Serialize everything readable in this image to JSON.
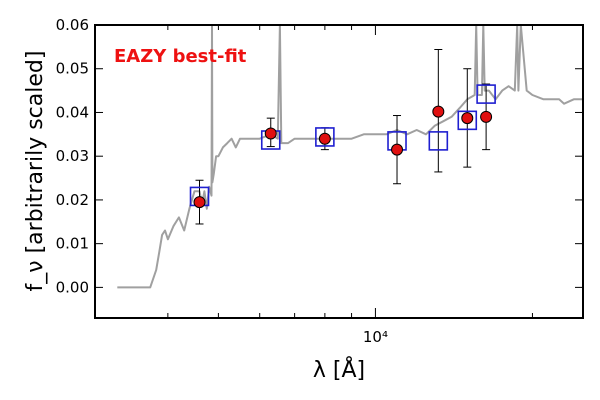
{
  "chart_data": {
    "type": "line",
    "annotation": "EAZY best-fit",
    "xlabel": "λ [Å]",
    "ylabel": "f_ν [arbitrarily scaled]",
    "x_scale": "log",
    "xlim": [
      2900,
      25000
    ],
    "ylim": [
      -0.007,
      0.06
    ],
    "y_ticks": [
      0.0,
      0.01,
      0.02,
      0.03,
      0.04,
      0.05,
      0.06
    ],
    "y_tick_labels": [
      "0.00",
      "0.01",
      "0.02",
      "0.03",
      "0.04",
      "0.05",
      "0.06"
    ],
    "x_major_tick_label": "10⁴",
    "x_major_tick": 10000,
    "x_minor_ticks": [
      4000,
      5000,
      6000,
      7000,
      8000,
      9000,
      20000
    ],
    "grid": false,
    "colors": {
      "model": "#a0a0a0",
      "model_photometry": "#1f1fd0",
      "observed": "#e01010",
      "annotation": "#ee1111"
    },
    "series": [
      {
        "role": "model_spectrum",
        "line_style": "solid",
        "x": [
          3200,
          3300,
          3400,
          3500,
          3600,
          3700,
          3800,
          3850,
          3900,
          3950,
          4000,
          4100,
          4200,
          4300,
          4400,
          4500,
          4600,
          4650,
          4700,
          4750,
          4800,
          4850,
          4860,
          4870,
          4900,
          4950,
          5000,
          5100,
          5200,
          5300,
          5400,
          5500,
          5700,
          6000,
          6300,
          6500,
          6560,
          6600,
          6800,
          7000,
          7500,
          8000,
          8500,
          9000,
          9500,
          10000,
          10500,
          11000,
          11500,
          12000,
          12500,
          13000,
          13500,
          14000,
          14500,
          15000,
          15500,
          15600,
          15700,
          16000,
          16100,
          16200,
          16500,
          17000,
          17500,
          18000,
          18500,
          18700,
          18800,
          19000,
          19500,
          20000,
          21000,
          22000,
          22300,
          22400,
          22500,
          23000,
          24000,
          25000
        ],
        "y": [
          0.0,
          0.0,
          0.0,
          0.0,
          0.0,
          0.0,
          0.004,
          0.008,
          0.012,
          0.013,
          0.011,
          0.014,
          0.016,
          0.013,
          0.018,
          0.022,
          0.022,
          0.019,
          0.022,
          0.018,
          0.023,
          0.021,
          0.06,
          0.024,
          0.026,
          0.03,
          0.03,
          0.032,
          0.033,
          0.034,
          0.032,
          0.034,
          0.034,
          0.034,
          0.035,
          0.034,
          0.06,
          0.033,
          0.033,
          0.034,
          0.034,
          0.034,
          0.034,
          0.034,
          0.035,
          0.035,
          0.035,
          0.036,
          0.035,
          0.036,
          0.035,
          0.037,
          0.038,
          0.039,
          0.041,
          0.043,
          0.044,
          0.06,
          0.044,
          0.044,
          0.06,
          0.045,
          0.045,
          0.043,
          0.045,
          0.046,
          0.045,
          0.06,
          0.045,
          0.06,
          0.045,
          0.044,
          0.043,
          0.043,
          0.043,
          0.043,
          0.043,
          0.042,
          0.043,
          0.043
        ]
      },
      {
        "role": "model_photometry",
        "marker": "open-square",
        "x": [
          4600,
          6300,
          8000,
          11000,
          13200,
          15000,
          16300
        ],
        "y": [
          0.0208,
          0.0337,
          0.0344,
          0.0335,
          0.0335,
          0.0382,
          0.0442
        ]
      },
      {
        "role": "observed_photometry",
        "marker": "filled-circle",
        "x": [
          4600,
          6300,
          8000,
          11000,
          13200,
          15000,
          16300
        ],
        "y": [
          0.0195,
          0.0352,
          0.034,
          0.0315,
          0.0402,
          0.0387,
          0.039
        ],
        "y_err_low": [
          0.005,
          0.003,
          0.0025,
          0.0078,
          0.0138,
          0.0112,
          0.0075
        ],
        "y_err_high": [
          0.005,
          0.0035,
          0.0025,
          0.0078,
          0.0142,
          0.0113,
          0.0075
        ]
      }
    ]
  }
}
